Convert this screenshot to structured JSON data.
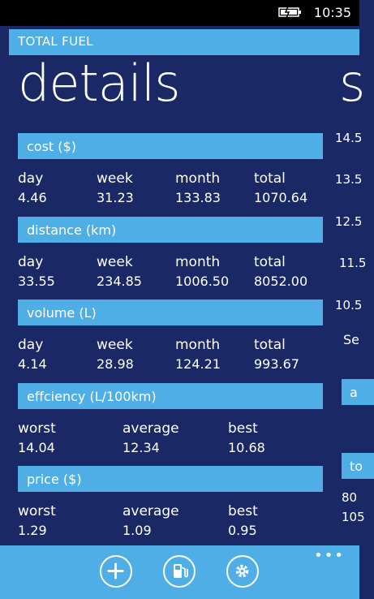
{
  "status": {
    "time": "10:35",
    "battery_icon": "battery-charging-icon"
  },
  "app_title": "TOTAL FUEL",
  "pivot": {
    "current": "details",
    "next_peek": "s"
  },
  "sections": [
    {
      "title": "cost ($)",
      "labels": [
        "day",
        "week",
        "month",
        "total"
      ],
      "values": [
        "4.46",
        "31.23",
        "133.83",
        "1070.64"
      ]
    },
    {
      "title": "distance (km)",
      "labels": [
        "day",
        "week",
        "month",
        "total"
      ],
      "values": [
        "33.55",
        "234.85",
        "1006.50",
        "8052.00"
      ]
    },
    {
      "title": "volume (L)",
      "labels": [
        "day",
        "week",
        "month",
        "total"
      ],
      "values": [
        "4.14",
        "28.98",
        "124.21",
        "993.67"
      ]
    },
    {
      "title": "effciency (L/100km)",
      "labels": [
        "worst",
        "average",
        "best"
      ],
      "values": [
        "14.04",
        "12.34",
        "10.68"
      ]
    },
    {
      "title": "price ($)",
      "labels": [
        "worst",
        "average",
        "best"
      ],
      "values": [
        "1.29",
        "1.09",
        "0.95"
      ]
    }
  ],
  "right_peek": {
    "axis": [
      "14.5",
      "13.5",
      "12.5",
      "11.5",
      "10.5"
    ],
    "label": "Se",
    "block1": "a",
    "block2": "to",
    "vals": [
      "80",
      "105"
    ]
  },
  "appbar": {
    "buttons": [
      "add-icon",
      "fuel-pump-icon",
      "settings-icon"
    ],
    "more": "•••"
  }
}
